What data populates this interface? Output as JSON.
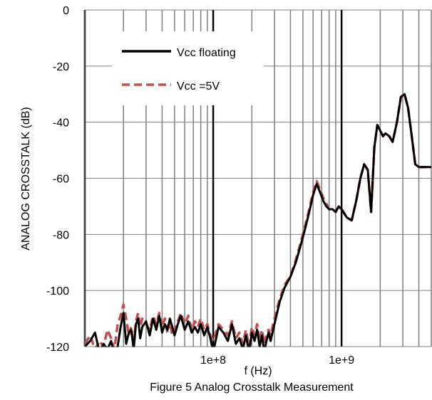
{
  "chart_data": {
    "type": "line",
    "title": "",
    "caption": "Figure 5 Analog Crosstalk Measurement",
    "xlabel": "f (Hz)",
    "ylabel": "ANALOG CROSSTALK (dB)",
    "x_scale": "log",
    "xlim": [
      10000000,
      5000000000
    ],
    "ylim": [
      -120,
      0
    ],
    "x_tick_labels": [
      {
        "value": 100000000,
        "label": "1e+8"
      },
      {
        "value": 1000000000,
        "label": "1e+9"
      }
    ],
    "y_ticks": [
      0,
      -20,
      -40,
      -60,
      -80,
      -100,
      -120
    ],
    "grid": true,
    "legend_position": "top-left",
    "series": [
      {
        "name": "Vcc floating",
        "color": "#000000",
        "style": "solid",
        "x": [
          10000000,
          11000000,
          12000000,
          13000000,
          14000000,
          15000000,
          16000000,
          17000000,
          18000000,
          19000000,
          20000000,
          21000000,
          22000000,
          23000000,
          24000000,
          25000000,
          26000000,
          27000000,
          28000000,
          30000000,
          32000000,
          34000000,
          36000000,
          38000000,
          40000000,
          42000000,
          44000000,
          46000000,
          48000000,
          50000000,
          53000000,
          56000000,
          60000000,
          64000000,
          68000000,
          72000000,
          76000000,
          80000000,
          85000000,
          90000000,
          95000000,
          100000000,
          110000000,
          120000000,
          130000000,
          140000000,
          150000000,
          160000000,
          170000000,
          180000000,
          190000000,
          200000000,
          210000000,
          220000000,
          230000000,
          240000000,
          250000000,
          260000000,
          270000000,
          280000000,
          300000000,
          330000000,
          360000000,
          400000000,
          440000000,
          480000000,
          520000000,
          560000000,
          600000000,
          640000000,
          680000000,
          720000000,
          760000000,
          800000000,
          850000000,
          900000000,
          950000000,
          1000000000,
          1100000000,
          1200000000,
          1300000000,
          1400000000,
          1500000000,
          1600000000,
          1700000000,
          1800000000,
          1900000000,
          2000000000,
          2100000000,
          2200000000,
          2350000000,
          2500000000,
          2700000000,
          2900000000,
          3100000000,
          3300000000,
          3500000000,
          3750000000,
          4000000000,
          4300000000,
          4600000000,
          5000000000
        ],
        "y": [
          -120,
          -118,
          -115,
          -122,
          -119,
          -121,
          -118,
          -123,
          -120,
          -113,
          -108,
          -119,
          -115,
          -114,
          -121,
          -112,
          -110,
          -117,
          -113,
          -111,
          -116,
          -110,
          -114,
          -109,
          -115,
          -112,
          -114,
          -110,
          -113,
          -116,
          -112,
          -109,
          -114,
          -111,
          -115,
          -113,
          -115,
          -112,
          -116,
          -113,
          -117,
          -122,
          -113,
          -115,
          -118,
          -112,
          -119,
          -117,
          -121,
          -116,
          -122,
          -115,
          -118,
          -114,
          -120,
          -116,
          -122,
          -118,
          -115,
          -118,
          -112,
          -104,
          -99,
          -95,
          -90,
          -84,
          -78,
          -72,
          -66,
          -62,
          -65,
          -68,
          -70,
          -71,
          -71,
          -72,
          -70,
          -71,
          -74,
          -75,
          -68,
          -60,
          -55,
          -57,
          -72,
          -49,
          -41,
          -43,
          -45,
          -44,
          -45,
          -47,
          -40,
          -31,
          -30,
          -35,
          -44,
          -55,
          -56,
          -56,
          -56,
          -56
        ],
        "y_note_unused": false
      },
      {
        "name": "Vcc =5V",
        "color": "#c0504d",
        "style": "dashed",
        "x": [
          10000000,
          11000000,
          12000000,
          13000000,
          14000000,
          15000000,
          16000000,
          17000000,
          18000000,
          19000000,
          20000000,
          21000000,
          22000000,
          23000000,
          24000000,
          25000000,
          26000000,
          27000000,
          28000000,
          30000000,
          32000000,
          34000000,
          36000000,
          38000000,
          40000000,
          42000000,
          44000000,
          46000000,
          48000000,
          50000000,
          53000000,
          56000000,
          60000000,
          64000000,
          68000000,
          72000000,
          76000000,
          80000000,
          85000000,
          90000000,
          95000000,
          100000000,
          110000000,
          120000000,
          130000000,
          140000000,
          150000000,
          160000000,
          170000000,
          180000000,
          190000000,
          200000000,
          210000000,
          220000000,
          230000000,
          240000000,
          250000000,
          260000000,
          270000000,
          280000000,
          300000000,
          330000000,
          360000000,
          400000000,
          440000000,
          480000000,
          520000000,
          560000000,
          600000000,
          640000000,
          680000000,
          720000000,
          760000000,
          800000000,
          850000000,
          900000000,
          950000000,
          1000000000,
          1100000000,
          1200000000,
          1300000000,
          1400000000,
          1500000000,
          1600000000,
          1700000000,
          1800000000,
          1900000000,
          2000000000,
          2100000000,
          2200000000,
          2350000000,
          2500000000,
          2700000000,
          2900000000,
          3100000000,
          3300000000,
          3500000000,
          3750000000,
          4000000000,
          4300000000,
          4600000000,
          5000000000
        ],
        "y": [
          -119,
          -116,
          -121,
          -118,
          -120,
          -114,
          -117,
          -121,
          -112,
          -109,
          -105,
          -110,
          -116,
          -113,
          -119,
          -111,
          -108,
          -113,
          -110,
          -112,
          -114,
          -109,
          -112,
          -108,
          -113,
          -110,
          -115,
          -111,
          -116,
          -114,
          -111,
          -108,
          -112,
          -109,
          -114,
          -111,
          -113,
          -110,
          -114,
          -112,
          -116,
          -118,
          -112,
          -114,
          -116,
          -111,
          -117,
          -115,
          -119,
          -114,
          -120,
          -113,
          -116,
          -112,
          -118,
          -114,
          -119,
          -116,
          -114,
          -116,
          -110,
          -103,
          -98,
          -95,
          -89,
          -83,
          -77,
          -71,
          -65,
          -61,
          -64,
          -67,
          -69,
          -71,
          -71,
          -72,
          -70,
          -71,
          -74,
          -75,
          -68,
          -60,
          -55,
          -57,
          -72,
          -49,
          -41,
          -43,
          -45,
          -44,
          -45,
          -47,
          -40,
          -31,
          -30,
          -35,
          -44,
          -55,
          -56,
          -56,
          -56,
          -56
        ]
      }
    ]
  }
}
